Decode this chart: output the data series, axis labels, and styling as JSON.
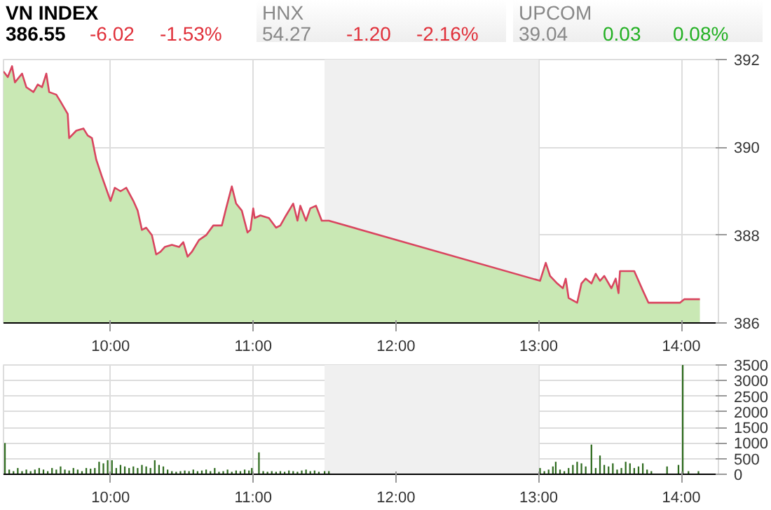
{
  "chart_data": [
    {
      "type": "other",
      "annotations": [
        "VN INDEX",
        "386.55",
        "-6.02",
        "-1.53%",
        "HNX",
        "54.27",
        "-1.20",
        "-2.16%",
        "UPCOM",
        "39.04",
        "0.03",
        "0.08%"
      ]
    },
    {
      "type": "area",
      "xlim": [
        9.25,
        14.26
      ],
      "ylim": [
        386,
        392
      ],
      "yticks": [
        386,
        388,
        390,
        392
      ],
      "xticks": [
        {
          "value": 10,
          "label": "10:00"
        },
        {
          "value": 11,
          "label": "11:00"
        },
        {
          "value": 12,
          "label": "12:00"
        },
        {
          "value": 13,
          "label": "13:00"
        },
        {
          "value": 14,
          "label": "14:00"
        }
      ],
      "grid": true,
      "bands": [
        {
          "axis": "x",
          "from": 11.5,
          "to": 13,
          "color": "#f0f0f0"
        }
      ],
      "series": [
        {
          "color": "#c9e8b4",
          "x": [
            9.25,
            9.28,
            9.31,
            9.33,
            9.38,
            9.41,
            9.46,
            9.49,
            9.52,
            9.55,
            9.57,
            9.62,
            9.65,
            9.7,
            9.71,
            9.76,
            9.81,
            9.84,
            9.87,
            9.9,
            9.94,
            10.0,
            10.03,
            10.07,
            10.11,
            10.16,
            10.19,
            10.22,
            10.25,
            10.29,
            10.32,
            10.35,
            10.38,
            10.43,
            10.48,
            10.51,
            10.54,
            10.57,
            10.62,
            10.67,
            10.72,
            10.78,
            10.81,
            10.85,
            10.88,
            10.92,
            10.96,
            10.98,
            11.0,
            11.01,
            11.05,
            11.11,
            11.16,
            11.19,
            11.23,
            11.28,
            11.31,
            11.33,
            11.37,
            11.4,
            11.44,
            11.48,
            11.53,
            13.01,
            13.05,
            13.08,
            13.13,
            13.17,
            13.19,
            13.21,
            13.27,
            13.3,
            13.33,
            13.37,
            13.4,
            13.43,
            13.46,
            13.51,
            13.54,
            13.56,
            13.57,
            13.62,
            13.67,
            13.7,
            13.73,
            13.77,
            13.99,
            14.02,
            14.13
          ],
          "values": [
            391.73,
            391.6,
            391.85,
            391.48,
            391.68,
            391.37,
            391.26,
            391.43,
            391.37,
            391.68,
            391.26,
            391.2,
            391.04,
            390.76,
            390.21,
            390.38,
            390.43,
            390.27,
            390.21,
            389.72,
            389.33,
            388.78,
            389.08,
            389.0,
            389.08,
            388.78,
            388.56,
            388.12,
            388.17,
            388.0,
            387.56,
            387.62,
            387.73,
            387.78,
            387.73,
            387.84,
            387.51,
            387.62,
            387.89,
            388.0,
            388.22,
            388.22,
            388.61,
            389.11,
            388.72,
            388.56,
            388.06,
            388.12,
            388.61,
            388.39,
            388.45,
            388.39,
            388.17,
            388.22,
            388.45,
            388.72,
            388.33,
            388.67,
            388.33,
            388.61,
            388.67,
            388.33,
            388.33,
            386.96,
            387.37,
            387.07,
            386.9,
            386.79,
            387.01,
            386.57,
            386.46,
            386.9,
            387.01,
            386.9,
            387.12,
            386.96,
            387.07,
            386.79,
            387.01,
            386.68,
            387.18,
            387.18,
            387.18,
            386.96,
            386.74,
            386.46,
            386.46,
            386.54,
            386.54
          ]
        },
        {
          "type": "line",
          "color": "#d9455f",
          "x": [
            9.25,
            9.28,
            9.31,
            9.33,
            9.38,
            9.41,
            9.46,
            9.49,
            9.52,
            9.55,
            9.57,
            9.62,
            9.65,
            9.7,
            9.71,
            9.76,
            9.81,
            9.84,
            9.87,
            9.9,
            9.94,
            10.0,
            10.03,
            10.07,
            10.11,
            10.16,
            10.19,
            10.22,
            10.25,
            10.29,
            10.32,
            10.35,
            10.38,
            10.43,
            10.48,
            10.51,
            10.54,
            10.57,
            10.62,
            10.67,
            10.72,
            10.78,
            10.81,
            10.85,
            10.88,
            10.92,
            10.96,
            10.98,
            11.0,
            11.01,
            11.05,
            11.11,
            11.16,
            11.19,
            11.23,
            11.28,
            11.31,
            11.33,
            11.37,
            11.4,
            11.44,
            11.48,
            11.53,
            13.01,
            13.05,
            13.08,
            13.13,
            13.17,
            13.19,
            13.21,
            13.27,
            13.3,
            13.33,
            13.37,
            13.4,
            13.43,
            13.46,
            13.51,
            13.54,
            13.56,
            13.57,
            13.62,
            13.67,
            13.7,
            13.73,
            13.77,
            13.99,
            14.02,
            14.13
          ],
          "values": [
            391.73,
            391.6,
            391.85,
            391.48,
            391.68,
            391.37,
            391.26,
            391.43,
            391.37,
            391.68,
            391.26,
            391.2,
            391.04,
            390.76,
            390.21,
            390.38,
            390.43,
            390.27,
            390.21,
            389.72,
            389.33,
            388.78,
            389.08,
            389.0,
            389.08,
            388.78,
            388.56,
            388.12,
            388.17,
            388.0,
            387.56,
            387.62,
            387.73,
            387.78,
            387.73,
            387.84,
            387.51,
            387.62,
            387.89,
            388.0,
            388.22,
            388.22,
            388.61,
            389.11,
            388.72,
            388.56,
            388.06,
            388.12,
            388.61,
            388.39,
            388.45,
            388.39,
            388.17,
            388.22,
            388.45,
            388.72,
            388.33,
            388.67,
            388.33,
            388.61,
            388.67,
            388.33,
            388.33,
            386.96,
            387.37,
            387.07,
            386.9,
            386.79,
            387.01,
            386.57,
            386.46,
            386.9,
            387.01,
            386.9,
            387.12,
            386.96,
            387.07,
            386.79,
            387.01,
            386.68,
            387.18,
            387.18,
            387.18,
            386.96,
            386.74,
            386.46,
            386.46,
            386.54,
            386.54
          ]
        }
      ]
    },
    {
      "type": "bar",
      "xlim": [
        9.25,
        14.26
      ],
      "ylim": [
        0,
        3500
      ],
      "yticks": [
        0,
        500,
        1000,
        1500,
        2000,
        2500,
        3000,
        3500
      ],
      "xticks": [
        {
          "value": 10,
          "label": "10:00"
        },
        {
          "value": 11,
          "label": "11:00"
        },
        {
          "value": 12,
          "label": "12:00"
        },
        {
          "value": 13,
          "label": "13:00"
        },
        {
          "value": 14,
          "label": "14:00"
        }
      ],
      "grid": true,
      "bands": [
        {
          "axis": "x",
          "from": 11.5,
          "to": 13,
          "color": "#f0f0f0"
        }
      ],
      "series": [
        {
          "color": "#2e6b1e",
          "x": [
            9.26,
            9.29,
            9.32,
            9.35,
            9.38,
            9.41,
            9.44,
            9.47,
            9.5,
            9.53,
            9.56,
            9.59,
            9.62,
            9.65,
            9.68,
            9.71,
            9.74,
            9.77,
            9.8,
            9.83,
            9.86,
            9.89,
            9.92,
            9.95,
            9.98,
            10.01,
            10.04,
            10.07,
            10.1,
            10.13,
            10.16,
            10.19,
            10.22,
            10.25,
            10.28,
            10.31,
            10.34,
            10.37,
            10.4,
            10.43,
            10.46,
            10.49,
            10.52,
            10.55,
            10.58,
            10.61,
            10.64,
            10.67,
            10.7,
            10.73,
            10.76,
            10.79,
            10.82,
            10.85,
            10.88,
            10.91,
            10.94,
            10.97,
            10.99,
            11.04,
            11.07,
            11.1,
            11.13,
            11.16,
            11.19,
            11.22,
            11.25,
            11.28,
            11.31,
            11.34,
            11.37,
            11.4,
            11.43,
            11.46,
            11.5,
            11.53,
            13.01,
            13.04,
            13.07,
            13.1,
            13.12,
            13.15,
            13.18,
            13.21,
            13.24,
            13.27,
            13.3,
            13.33,
            13.37,
            13.4,
            13.43,
            13.46,
            13.49,
            13.52,
            13.55,
            13.58,
            13.61,
            13.64,
            13.67,
            13.7,
            13.73,
            13.76,
            13.79,
            13.9,
            13.98,
            14.01,
            14.05,
            14.12
          ],
          "values": [
            1000,
            150,
            100,
            200,
            100,
            150,
            100,
            150,
            200,
            150,
            100,
            200,
            150,
            250,
            150,
            120,
            200,
            150,
            100,
            200,
            180,
            200,
            400,
            350,
            450,
            450,
            200,
            300,
            250,
            200,
            250,
            200,
            300,
            250,
            200,
            450,
            300,
            250,
            150,
            100,
            80,
            100,
            120,
            100,
            150,
            100,
            120,
            150,
            100,
            200,
            80,
            100,
            150,
            80,
            120,
            100,
            150,
            120,
            200,
            700,
            100,
            80,
            100,
            80,
            100,
            80,
            120,
            100,
            80,
            120,
            150,
            100,
            120,
            80,
            100,
            100,
            200,
            100,
            150,
            250,
            400,
            150,
            100,
            200,
            300,
            400,
            350,
            250,
            950,
            200,
            600,
            300,
            250,
            350,
            150,
            200,
            400,
            350,
            200,
            250,
            350,
            150,
            100,
            250,
            300,
            3500,
            100,
            100
          ]
        }
      ]
    }
  ]
}
